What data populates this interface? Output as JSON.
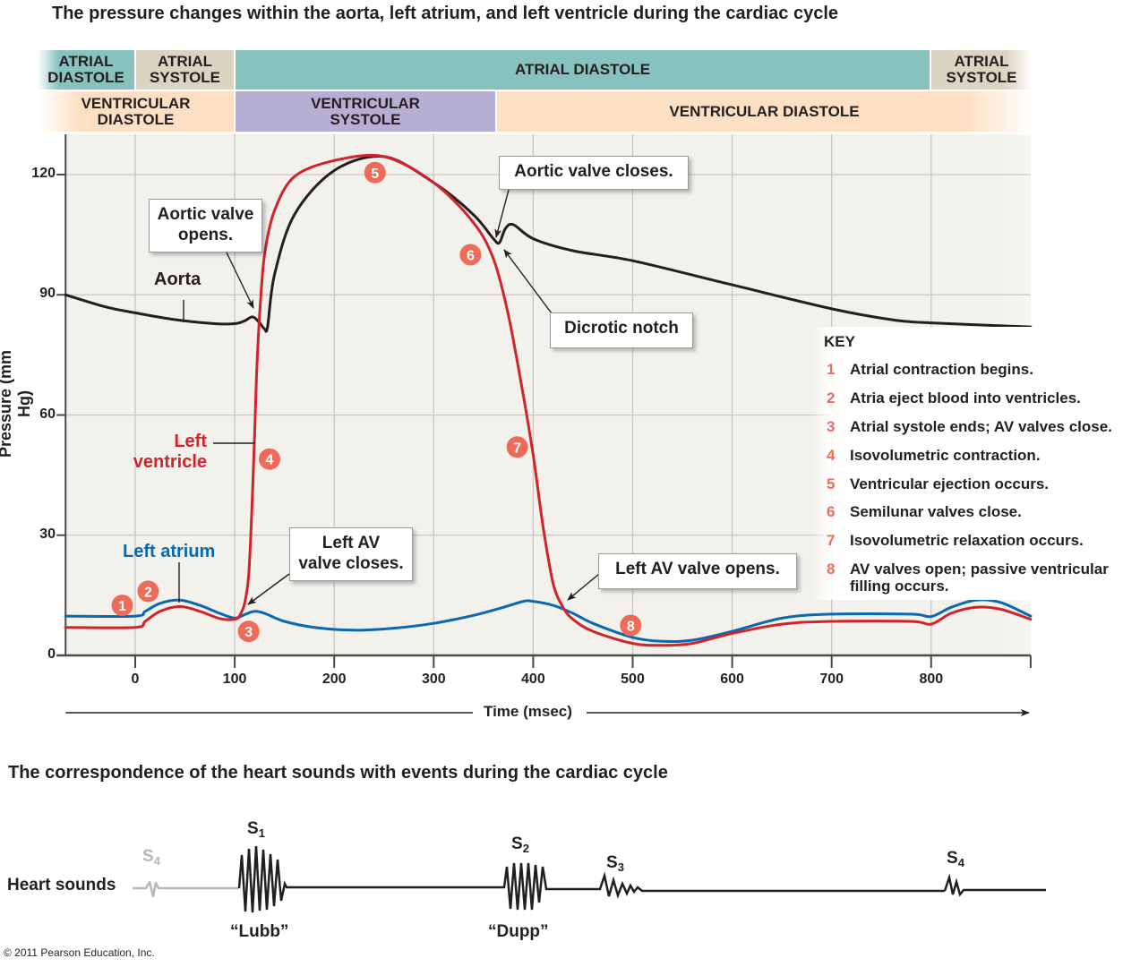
{
  "titles": {
    "main": "The pressure changes within the aorta, left atrium, and left ventricle during the cardiac cycle",
    "sounds": "The correspondence of the heart sounds with events during the cardiac cycle"
  },
  "phases": {
    "atrial": [
      {
        "label": "ATRIAL DIASTOLE",
        "line1": "ATRIAL",
        "line2": "DIASTOLE",
        "start": -70,
        "end": 0
      },
      {
        "label": "ATRIAL SYSTOLE",
        "line1": "ATRIAL",
        "line2": "SYSTOLE",
        "start": 0,
        "end": 100
      },
      {
        "label": "ATRIAL DIASTOLE",
        "line1": "ATRIAL DIASTOLE",
        "line2": "",
        "start": 100,
        "end": 800
      },
      {
        "label": "ATRIAL SYSTOLE",
        "line1": "ATRIAL",
        "line2": "SYSTOLE",
        "start": 800,
        "end": 900
      }
    ],
    "ventricular": [
      {
        "label": "VENTRICULAR DIASTOLE",
        "line1": "VENTRICULAR",
        "line2": "DIASTOLE",
        "start": -70,
        "end": 100
      },
      {
        "label": "VENTRICULAR SYSTOLE",
        "line1": "VENTRICULAR",
        "line2": "SYSTOLE",
        "start": 100,
        "end": 365
      },
      {
        "label": "VENTRICULAR DIASTOLE",
        "line1": "VENTRICULAR DIASTOLE",
        "line2": "",
        "start": 365,
        "end": 900
      }
    ]
  },
  "chart_data": {
    "type": "line",
    "title": "The pressure changes within the aorta, left atrium, and left ventricle during the cardiac cycle",
    "xlabel": "Time (msec)",
    "ylabel": "Pressure (mm Hg)",
    "xlim": [
      -70,
      900
    ],
    "ylim": [
      0,
      130
    ],
    "xticks": [
      0,
      100,
      200,
      300,
      400,
      500,
      600,
      700,
      800
    ],
    "yticks": [
      0,
      30,
      60,
      90,
      120
    ],
    "grid": true,
    "series": [
      {
        "name": "Aorta",
        "color": "#231f20",
        "x": [
          -70,
          -30,
          0,
          40,
          80,
          100,
          110,
          118,
          125,
          130,
          133,
          140,
          160,
          200,
          250,
          300,
          340,
          360,
          366,
          372,
          380,
          400,
          440,
          500,
          600,
          700,
          760,
          800,
          900
        ],
        "y": [
          90,
          87,
          85.5,
          83.8,
          82.8,
          82.8,
          83.5,
          84.5,
          83,
          81.5,
          82,
          95,
          110,
          121,
          124.5,
          118,
          110,
          104,
          103,
          106.5,
          107.5,
          104,
          101,
          98.5,
          92.5,
          86.5,
          83.8,
          83,
          82
        ]
      },
      {
        "name": "Left ventricle",
        "color": "#d2232a",
        "x": [
          -70,
          0,
          10,
          25,
          45,
          65,
          85,
          100,
          105,
          110,
          114,
          117,
          120,
          122,
          125,
          130,
          140,
          160,
          200,
          250,
          300,
          340,
          360,
          375,
          390,
          400,
          410,
          420,
          430,
          440,
          460,
          500,
          530,
          560,
          600,
          650,
          700,
          780,
          800,
          820,
          845,
          870,
          900
        ],
        "y": [
          7,
          7,
          8.5,
          11,
          12.2,
          11,
          9.2,
          9,
          10,
          13,
          20,
          35,
          55,
          70,
          85,
          100,
          111,
          119.5,
          123.5,
          124.5,
          118,
          108,
          99,
          85,
          65,
          50,
          32,
          18,
          12,
          9,
          6,
          3,
          2.5,
          3,
          5.5,
          7.8,
          8.5,
          8.5,
          7.8,
          10.5,
          12,
          11.5,
          9
        ]
      },
      {
        "name": "Left atrium",
        "color": "#0a68b0",
        "x": [
          -70,
          0,
          10,
          25,
          45,
          65,
          85,
          100,
          110,
          120,
          130,
          150,
          180,
          220,
          260,
          300,
          340,
          370,
          390,
          400,
          420,
          440,
          460,
          500,
          530,
          560,
          600,
          650,
          700,
          780,
          800,
          820,
          845,
          870,
          900
        ],
        "y": [
          9.8,
          9.8,
          11,
          13,
          13.8,
          12.5,
          10.5,
          9.3,
          10.2,
          11,
          10.5,
          8.5,
          7,
          6.3,
          6.8,
          8,
          10,
          12,
          13.5,
          13.5,
          12.5,
          10.5,
          8,
          4.5,
          3.5,
          3.8,
          6,
          9.3,
          10.3,
          10.3,
          9.7,
          12,
          13.8,
          13.2,
          9.8
        ]
      }
    ],
    "annotations": [
      {
        "label": "1",
        "x": -13,
        "y": 12.5,
        "text": "Atrial contraction begins."
      },
      {
        "label": "2",
        "x": 13,
        "y": 16,
        "text": "Atria eject blood into ventricles."
      },
      {
        "label": "3",
        "x": 114,
        "y": 6,
        "text": "Atrial systole ends; AV valves close."
      },
      {
        "label": "4",
        "x": 135,
        "y": 49,
        "text": "Isovolumetric contraction."
      },
      {
        "label": "5",
        "x": 241,
        "y": 120.5,
        "text": "Ventricular ejection occurs."
      },
      {
        "label": "6",
        "x": 337,
        "y": 100,
        "text": "Semilunar valves close."
      },
      {
        "label": "7",
        "x": 384,
        "y": 52,
        "text": "Isovolumetric relaxation occurs."
      },
      {
        "label": "8",
        "x": 498,
        "y": 7.5,
        "text": "AV valves open; passive ventricular filling occurs."
      }
    ]
  },
  "series_labels": {
    "aorta": "Aorta",
    "lv_line1": "Left",
    "lv_line2": "ventricle",
    "la": "Left atrium"
  },
  "callouts": {
    "aortic_opens_1": "Aortic valve",
    "aortic_opens_2": "opens.",
    "aortic_closes": "Aortic valve closes.",
    "dicrotic": "Dicrotic notch",
    "av_closes_1": "Left AV",
    "av_closes_2": "valve closes.",
    "av_opens": "Left AV valve opens."
  },
  "key": {
    "title": "KEY",
    "items": [
      {
        "num": "1",
        "text": "Atrial contraction begins."
      },
      {
        "num": "2",
        "text": "Atria eject blood into ventricles."
      },
      {
        "num": "3",
        "text": "Atrial systole ends; AV valves close."
      },
      {
        "num": "4",
        "text": "Isovolumetric contraction."
      },
      {
        "num": "5",
        "text": "Ventricular ejection occurs."
      },
      {
        "num": "6",
        "text": "Semilunar valves close."
      },
      {
        "num": "7",
        "text": "Isovolumetric relaxation occurs."
      },
      {
        "num": "8",
        "text": "AV valves open; passive ventricular filling occurs."
      }
    ]
  },
  "heart_sounds": {
    "label": "Heart sounds",
    "s4_faded": {
      "base": "S",
      "sub": "4"
    },
    "s1": {
      "base": "S",
      "sub": "1",
      "word": "“Lubb”"
    },
    "s2": {
      "base": "S",
      "sub": "2",
      "word": "“Dupp”"
    },
    "s3": {
      "base": "S",
      "sub": "3"
    },
    "s4": {
      "base": "S",
      "sub": "4"
    }
  },
  "colors": {
    "aorta": "#231f20",
    "ventricle": "#d2232a",
    "atrium": "#0a68b0",
    "badge": "#ee6b5a",
    "plot_bg": "#f3f1ec",
    "grid": "#c8c6c2"
  },
  "copyright": "© 2011 Pearson Education, Inc."
}
